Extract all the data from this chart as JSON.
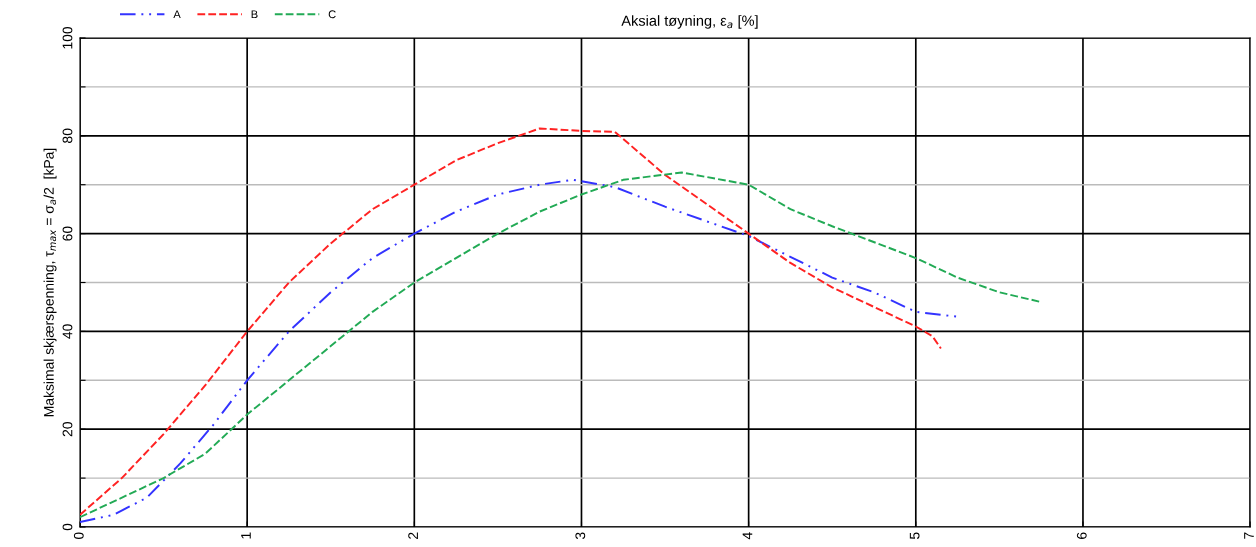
{
  "chart_data": {
    "type": "line",
    "title": "Aksial tøyning, ε$_{a}$ [%]",
    "ylabel": "Maksimal skjærspenning, τ$_{max}$ = σ$_{a}$/2  [kPa]",
    "xlim": [
      0,
      7
    ],
    "xticks": [
      0,
      1,
      2,
      3,
      4,
      5,
      6,
      7
    ],
    "ylim": [
      0,
      100
    ],
    "yticks": [
      0,
      {
        "value": 10,
        "label": null
      },
      20,
      {
        "value": 30,
        "label": null
      },
      40,
      {
        "value": 50,
        "label": null
      },
      60,
      {
        "value": 70,
        "label": null
      },
      80,
      {
        "value": 90,
        "label": null
      },
      100
    ],
    "grid": true,
    "legend": "top left",
    "marker": "none",
    "series": [
      {
        "name": "A",
        "color": "#3333ff",
        "line_style": "dashdot",
        "x": [
          0,
          0.2,
          0.4,
          0.6,
          0.8,
          1,
          1.25,
          1.5,
          1.75,
          2,
          2.25,
          2.5,
          2.75,
          2.95,
          3.2,
          3.5,
          4,
          4.5,
          4.75,
          5,
          5.25
        ],
        "values": [
          1,
          2.5,
          6,
          13,
          21,
          30,
          40,
          48,
          55,
          60,
          64.5,
          68,
          70,
          71,
          69.5,
          65.5,
          59.5,
          51,
          48,
          44,
          43
        ]
      },
      {
        "name": "B",
        "color": "#ff2222",
        "line_style": "dashed",
        "x": [
          0,
          0.25,
          0.5,
          0.75,
          1,
          1.25,
          1.5,
          1.75,
          2,
          2.25,
          2.5,
          2.75,
          3,
          3.2,
          3.5,
          4,
          4.25,
          4.5,
          4.75,
          5,
          5.1,
          5.15
        ],
        "values": [
          2.5,
          10,
          19,
          29,
          40,
          50,
          58,
          65,
          70,
          75,
          78.5,
          81.5,
          81,
          80.8,
          72,
          60,
          54,
          49,
          45,
          41,
          39,
          36.5
        ]
      },
      {
        "name": "C",
        "color": "#22aa55",
        "line_style": "dashed",
        "x": [
          0,
          0.5,
          0.75,
          1,
          1.25,
          1.5,
          1.75,
          2,
          2.5,
          2.75,
          3,
          3.25,
          3.6,
          4,
          4.25,
          4.5,
          5,
          5.25,
          5.5,
          5.75
        ],
        "values": [
          2,
          10,
          15,
          23,
          30,
          37,
          44,
          50,
          60,
          64.5,
          68,
          71,
          72.5,
          70,
          65,
          61.5,
          55,
          51,
          48,
          46
        ]
      }
    ]
  }
}
